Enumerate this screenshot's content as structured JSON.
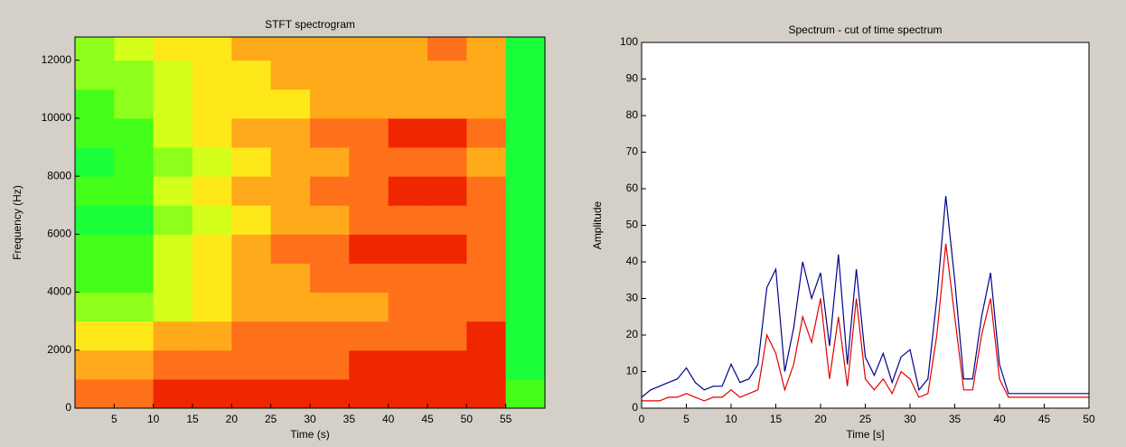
{
  "chart_data": [
    {
      "type": "heatmap",
      "title": "STFT spectrogram",
      "x_label": "Time (s)",
      "y_label": "Frequency (Hz)",
      "x_bins": [
        0,
        5,
        10,
        15,
        20,
        25,
        30,
        35,
        40,
        45,
        50,
        55,
        60
      ],
      "y_bins": [
        0,
        1000,
        2000,
        3000,
        4000,
        5000,
        6000,
        7000,
        8000,
        9000,
        10000,
        11000,
        12000,
        12800
      ],
      "clim": [
        0,
        10
      ],
      "z": [
        [
          8,
          8,
          9,
          9,
          9,
          9,
          9,
          9,
          9,
          9,
          9,
          3
        ],
        [
          7,
          7,
          8,
          8,
          8,
          8,
          8,
          9,
          9,
          9,
          9,
          2
        ],
        [
          6,
          6,
          7,
          7,
          8,
          8,
          8,
          8,
          8,
          8,
          9,
          2
        ],
        [
          4,
          4,
          5,
          6,
          7,
          7,
          7,
          7,
          8,
          8,
          8,
          2
        ],
        [
          3,
          3,
          5,
          6,
          7,
          7,
          8,
          8,
          8,
          8,
          8,
          2
        ],
        [
          3,
          3,
          5,
          6,
          7,
          8,
          8,
          9,
          9,
          9,
          8,
          2
        ],
        [
          2,
          2,
          4,
          5,
          6,
          7,
          7,
          8,
          8,
          8,
          8,
          2
        ],
        [
          3,
          3,
          5,
          6,
          7,
          7,
          8,
          8,
          9,
          9,
          8,
          2
        ],
        [
          2,
          3,
          4,
          5,
          6,
          7,
          7,
          8,
          8,
          8,
          7,
          2
        ],
        [
          3,
          3,
          5,
          6,
          7,
          7,
          8,
          8,
          9,
          9,
          8,
          2
        ],
        [
          3,
          4,
          5,
          6,
          6,
          6,
          7,
          7,
          7,
          7,
          7,
          2
        ],
        [
          4,
          4,
          5,
          6,
          6,
          7,
          7,
          7,
          7,
          7,
          7,
          2
        ],
        [
          4,
          5,
          6,
          6,
          7,
          7,
          7,
          7,
          7,
          8,
          7,
          2
        ]
      ],
      "xlim": [
        0,
        60
      ],
      "xticks": [
        5,
        10,
        15,
        20,
        25,
        30,
        35,
        40,
        45,
        50,
        55
      ],
      "ylim": [
        0,
        12800
      ],
      "yticks": [
        0,
        2000,
        4000,
        6000,
        8000,
        10000,
        12000
      ]
    },
    {
      "type": "line",
      "title": "Spectrum - cut of time spectrum",
      "x_label": "Time [s]",
      "y_label": "Amplitude",
      "x": [
        0,
        1,
        2,
        3,
        4,
        5,
        6,
        7,
        8,
        9,
        10,
        11,
        12,
        13,
        14,
        15,
        16,
        17,
        18,
        19,
        20,
        21,
        22,
        23,
        24,
        25,
        26,
        27,
        28,
        29,
        30,
        31,
        32,
        33,
        34,
        35,
        36,
        37,
        38,
        39,
        40,
        41,
        42,
        43,
        44,
        45,
        46,
        47,
        48,
        49,
        50
      ],
      "series": [
        {
          "color": "#00008b",
          "values": [
            3,
            5,
            6,
            7,
            8,
            11,
            7,
            5,
            6,
            6,
            12,
            7,
            8,
            12,
            33,
            38,
            10,
            22,
            40,
            30,
            37,
            17,
            42,
            12,
            38,
            14,
            9,
            15,
            7,
            14,
            16,
            5,
            8,
            30,
            58,
            35,
            8,
            8,
            25,
            37,
            12,
            4,
            4,
            4,
            4,
            4,
            4,
            4,
            4,
            4,
            4
          ]
        },
        {
          "color": "#e00000",
          "values": [
            2,
            2,
            2,
            3,
            3,
            4,
            3,
            2,
            3,
            3,
            5,
            3,
            4,
            5,
            20,
            15,
            5,
            12,
            25,
            18,
            30,
            8,
            25,
            6,
            30,
            8,
            5,
            8,
            4,
            10,
            8,
            3,
            4,
            20,
            45,
            25,
            5,
            5,
            20,
            30,
            8,
            3,
            3,
            3,
            3,
            3,
            3,
            3,
            3,
            3,
            3
          ]
        }
      ],
      "xlim": [
        0,
        50
      ],
      "xticks": [
        0,
        5,
        10,
        15,
        20,
        25,
        30,
        35,
        40,
        45,
        50
      ],
      "ylim": [
        0,
        100
      ],
      "yticks": [
        0,
        10,
        20,
        30,
        40,
        50,
        60,
        70,
        80,
        90,
        100
      ]
    }
  ]
}
